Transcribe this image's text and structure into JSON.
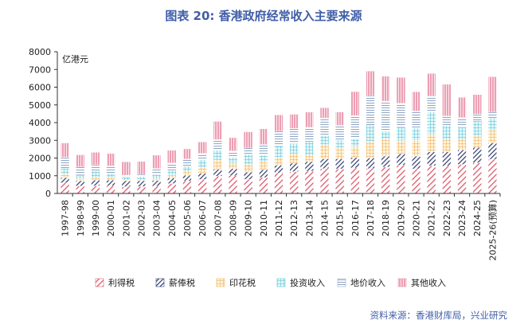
{
  "chart_data": {
    "type": "bar",
    "stacked": true,
    "title": "图表 20: 香港政府经常收入主要来源",
    "ylabel": "亿港元",
    "ylim": [
      0,
      8000
    ],
    "yticks": [
      0,
      1000,
      2000,
      3000,
      4000,
      5000,
      6000,
      7000,
      8000
    ],
    "source": "资料来源：香港财库局，兴业研究",
    "legend_position": "bottom",
    "categories": [
      "1997-98",
      "1998-99",
      "1999-00",
      "2000-01",
      "2001-02",
      "2002-03",
      "2003-04",
      "2004-05",
      "2005-06",
      "2006-07",
      "2007-08",
      "2008-09",
      "2009-10",
      "2010-11",
      "2011-12",
      "2012-13",
      "2013-14",
      "2014-15",
      "2015-16",
      "2016-17",
      "2017-18",
      "2018-19",
      "2019-20",
      "2020-21",
      "2021-22",
      "2022-23",
      "2023-24",
      "2024-25",
      "2025-26(预算)"
    ],
    "series": [
      {
        "name": "利得税",
        "color": "#e06a7a",
        "pattern": "diag-red",
        "values": [
          600,
          420,
          430,
          430,
          380,
          390,
          420,
          560,
          700,
          800,
          980,
          1000,
          800,
          900,
          1150,
          1230,
          1260,
          1400,
          1390,
          1440,
          1400,
          1490,
          1600,
          1390,
          1560,
          1560,
          1640,
          1730,
          1930
        ]
      },
      {
        "name": "薪俸税",
        "color": "#3c4a78",
        "pattern": "diag-navy",
        "values": [
          300,
          300,
          320,
          330,
          340,
          330,
          320,
          320,
          330,
          340,
          390,
          400,
          400,
          440,
          450,
          480,
          540,
          560,
          570,
          590,
          600,
          620,
          640,
          720,
          790,
          800,
          820,
          870,
          930
        ]
      },
      {
        "name": "印花税",
        "color": "#f0b860",
        "pattern": "grid-orange",
        "values": [
          200,
          120,
          150,
          120,
          80,
          80,
          100,
          160,
          190,
          330,
          520,
          330,
          440,
          450,
          440,
          540,
          350,
          800,
          620,
          620,
          960,
          950,
          750,
          890,
          1000,
          670,
          560,
          650,
          700
        ]
      },
      {
        "name": "投资收入",
        "color": "#5fc8d8",
        "pattern": "grid-teal",
        "values": [
          320,
          200,
          370,
          250,
          120,
          160,
          220,
          230,
          320,
          430,
          560,
          300,
          570,
          370,
          630,
          580,
          770,
          500,
          430,
          450,
          890,
          430,
          760,
          690,
          1250,
          800,
          740,
          860,
          700
        ]
      },
      {
        "name": "地价收入",
        "color": "#9ab0c8",
        "pattern": "hlines-blue",
        "values": [
          630,
          460,
          350,
          420,
          110,
          120,
          350,
          450,
          400,
          360,
          590,
          370,
          360,
          600,
          850,
          850,
          810,
          1000,
          830,
          1290,
          1680,
          1720,
          1340,
          960,
          910,
          540,
          530,
          370,
          330
        ]
      },
      {
        "name": "其他收入",
        "color": "#e890a8",
        "pattern": "vlines-pink",
        "values": [
          800,
          680,
          700,
          710,
          760,
          730,
          750,
          720,
          580,
          650,
          1030,
          750,
          910,
          890,
          920,
          790,
          860,
          580,
          760,
          1360,
          1380,
          1410,
          1460,
          1090,
          1270,
          1790,
          1140,
          1100,
          2000
        ]
      }
    ]
  }
}
